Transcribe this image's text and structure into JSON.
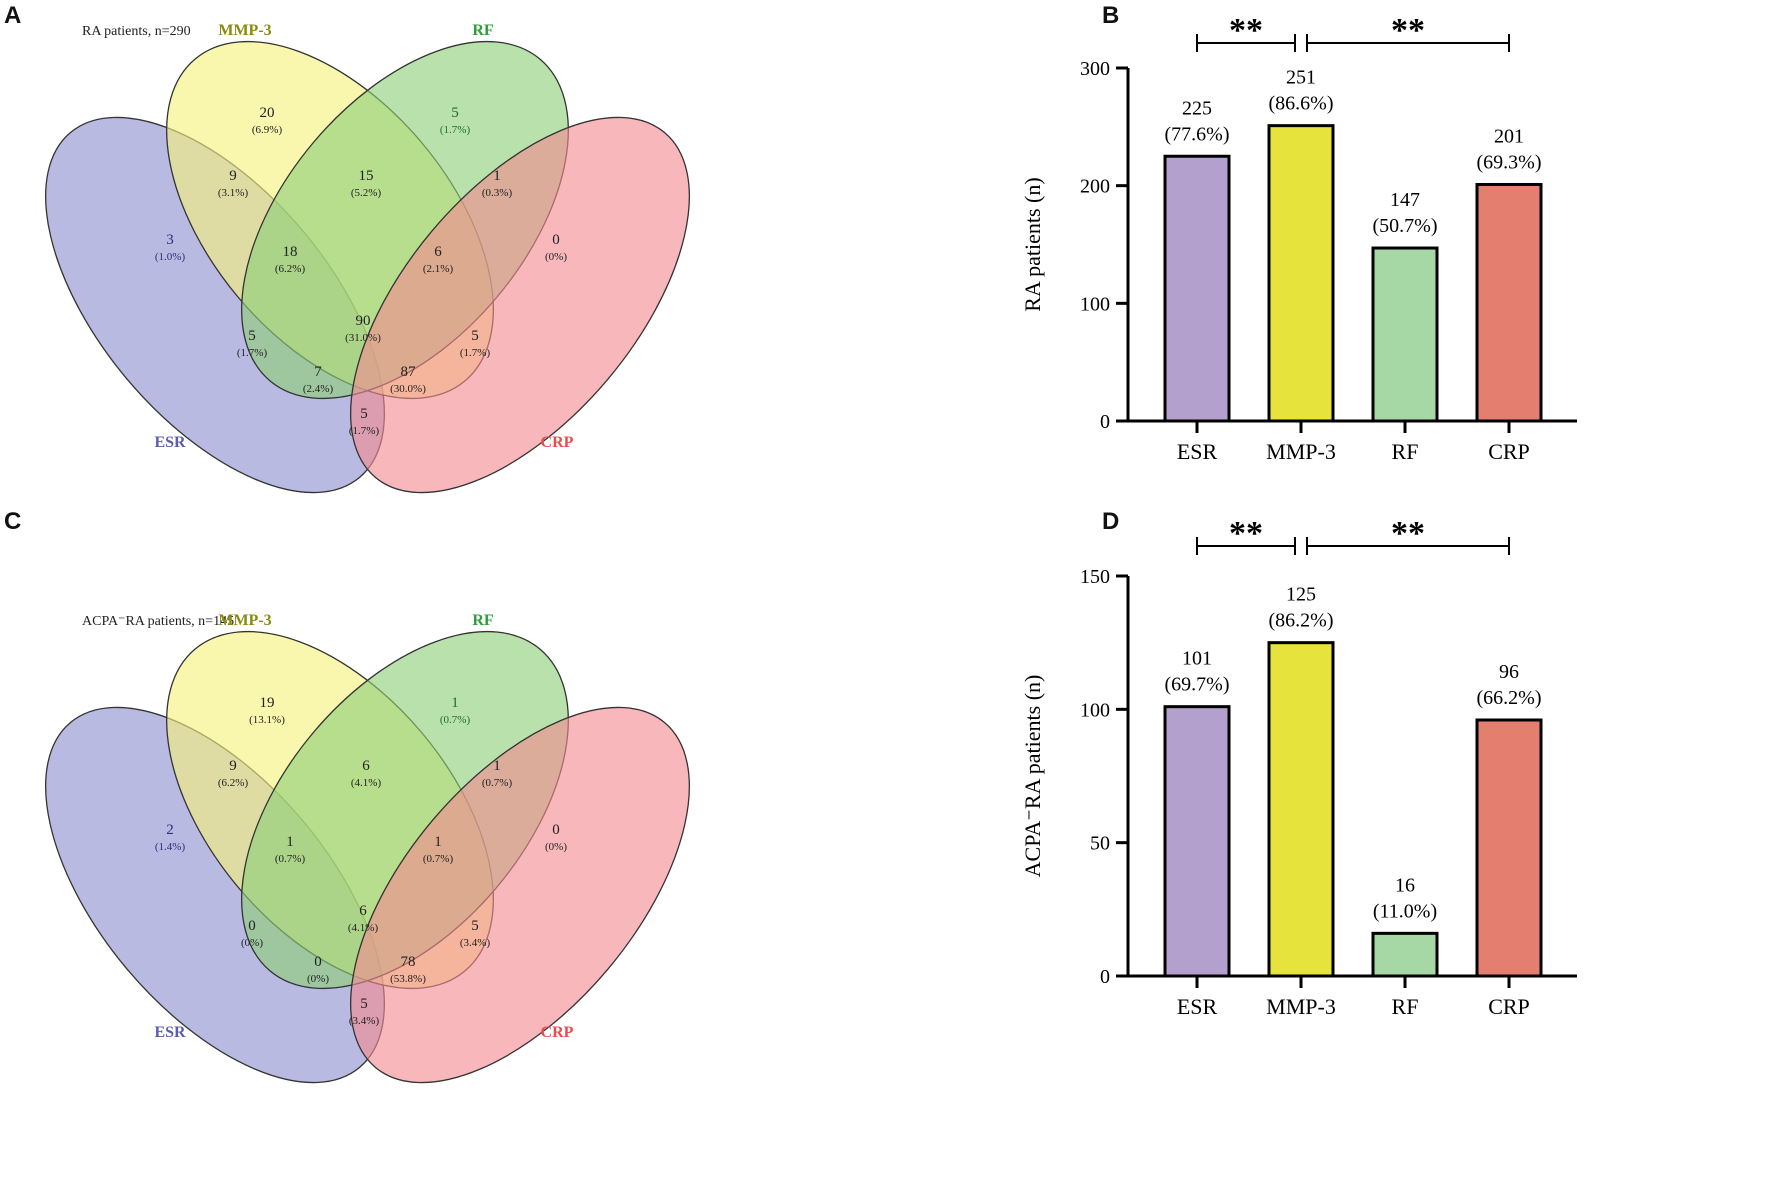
{
  "chart_data": [
    {
      "panel": "A",
      "type": "venn",
      "title": "RA patients, n=290",
      "sets": [
        {
          "name": "ESR",
          "color": "#5b5bb0",
          "fill": "#8c8fd0"
        },
        {
          "name": "MMP-3",
          "color": "#8a8a10",
          "fill": "#f5f07a"
        },
        {
          "name": "RF",
          "color": "#2e9e3a",
          "fill": "#8ecf78"
        },
        {
          "name": "CRP",
          "color": "#e84c4c",
          "fill": "#f28a92"
        }
      ],
      "regions": {
        "mmp3_only": {
          "n": "20",
          "pct": "(6.9%)"
        },
        "rf_only": {
          "n": "5",
          "pct": "(1.7%)"
        },
        "esr_mmp3": {
          "n": "9",
          "pct": "(3.1%)"
        },
        "mmp3_rf": {
          "n": "15",
          "pct": "(5.2%)"
        },
        "rf_crp": {
          "n": "1",
          "pct": "(0.3%)"
        },
        "esr_only": {
          "n": "3",
          "pct": "(1.0%)"
        },
        "esr_mmp3_rf": {
          "n": "18",
          "pct": "(6.2%)"
        },
        "mmp3_rf_crp": {
          "n": "6",
          "pct": "(2.1%)"
        },
        "crp_only": {
          "n": "0",
          "pct": "(0%)"
        },
        "esr_rf": {
          "n": "5",
          "pct": "(1.7%)"
        },
        "all_four": {
          "n": "90",
          "pct": "(31.0%)"
        },
        "mmp3_crp": {
          "n": "5",
          "pct": "(1.7%)"
        },
        "esr_rf_crp": {
          "n": "7",
          "pct": "(2.4%)"
        },
        "esr_mmp3_crp": {
          "n": "87",
          "pct": "(30.0%)"
        },
        "esr_crp": {
          "n": "5",
          "pct": "(1.7%)"
        }
      }
    },
    {
      "panel": "B",
      "type": "bar",
      "categories": [
        "ESR",
        "MMP-3",
        "RF",
        "CRP"
      ],
      "values": [
        225,
        251,
        147,
        201
      ],
      "value_labels": [
        "225",
        "251",
        "147",
        "201"
      ],
      "pct_labels": [
        "(77.6%)",
        "(86.6%)",
        "(50.7%)",
        "(69.3%)"
      ],
      "colors": [
        "#b3a0cc",
        "#e5e33c",
        "#a6d8a6",
        "#e47f70"
      ],
      "ylabel": "RA patients (n)",
      "ylim": [
        0,
        300
      ],
      "yticks": [
        0,
        100,
        200,
        300
      ],
      "significance": [
        {
          "from": "ESR",
          "to": "MMP-3",
          "label": "**"
        },
        {
          "from": "MMP-3",
          "to": "CRP",
          "label": "**"
        }
      ]
    },
    {
      "panel": "C",
      "type": "venn",
      "title": "ACPA⁻RA patients, n=145",
      "sets": [
        {
          "name": "ESR",
          "color": "#5b5bb0",
          "fill": "#8c8fd0"
        },
        {
          "name": "MMP-3",
          "color": "#8a8a10",
          "fill": "#f5f07a"
        },
        {
          "name": "RF",
          "color": "#2e9e3a",
          "fill": "#8ecf78"
        },
        {
          "name": "CRP",
          "color": "#e84c4c",
          "fill": "#f28a92"
        }
      ],
      "regions": {
        "mmp3_only": {
          "n": "19",
          "pct": "(13.1%)"
        },
        "rf_only": {
          "n": "1",
          "pct": "(0.7%)"
        },
        "esr_mmp3": {
          "n": "9",
          "pct": "(6.2%)"
        },
        "mmp3_rf": {
          "n": "6",
          "pct": "(4.1%)"
        },
        "rf_crp": {
          "n": "1",
          "pct": "(0.7%)"
        },
        "esr_only": {
          "n": "2",
          "pct": "(1.4%)"
        },
        "esr_mmp3_rf": {
          "n": "1",
          "pct": "(0.7%)"
        },
        "mmp3_rf_crp": {
          "n": "1",
          "pct": "(0.7%)"
        },
        "crp_only": {
          "n": "0",
          "pct": "(0%)"
        },
        "esr_rf": {
          "n": "0",
          "pct": "(0%)"
        },
        "all_four": {
          "n": "6",
          "pct": "(4.1%)"
        },
        "mmp3_crp": {
          "n": "5",
          "pct": "(3.4%)"
        },
        "esr_rf_crp": {
          "n": "0",
          "pct": "(0%)"
        },
        "esr_mmp3_crp": {
          "n": "78",
          "pct": "(53.8%)"
        },
        "esr_crp": {
          "n": "5",
          "pct": "(3.4%)"
        }
      }
    },
    {
      "panel": "D",
      "type": "bar",
      "categories": [
        "ESR",
        "MMP-3",
        "RF",
        "CRP"
      ],
      "values": [
        101,
        125,
        16,
        96
      ],
      "value_labels": [
        "101",
        "125",
        "16",
        "96"
      ],
      "pct_labels": [
        "(69.7%)",
        "(86.2%)",
        "(11.0%)",
        "(66.2%)"
      ],
      "colors": [
        "#b3a0cc",
        "#e5e33c",
        "#a6d8a6",
        "#e47f70"
      ],
      "ylabel": "ACPA⁻RA patients (n)",
      "ylim": [
        0,
        150
      ],
      "yticks": [
        0,
        50,
        100,
        150
      ],
      "significance": [
        {
          "from": "ESR",
          "to": "MMP-3",
          "label": "**"
        },
        {
          "from": "MMP-3",
          "to": "CRP",
          "label": "**"
        }
      ]
    }
  ]
}
